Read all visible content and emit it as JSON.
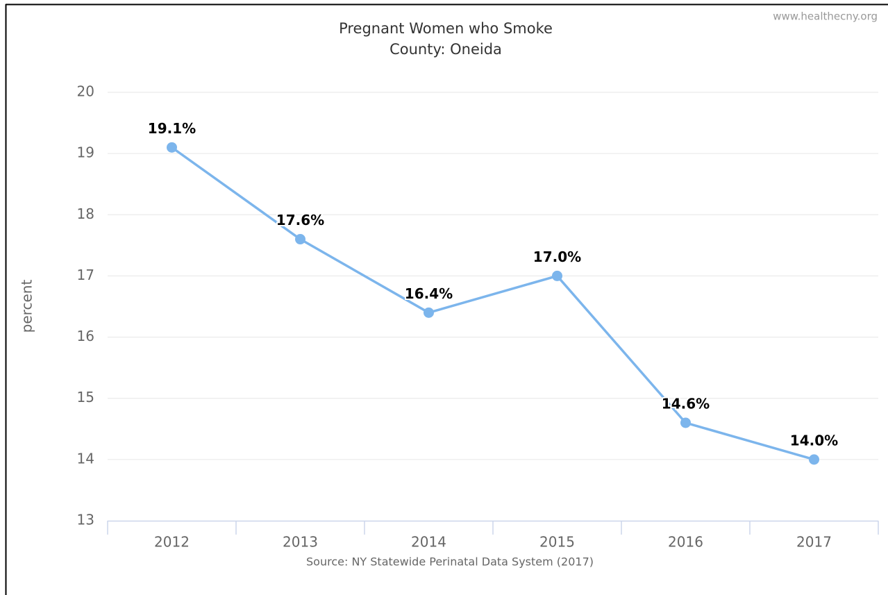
{
  "chart_data": {
    "type": "line",
    "title": "Pregnant Women who Smoke",
    "subtitle": "County: Oneida",
    "credit": "www.healthecny.org",
    "y_label": "percent",
    "source": "Source: NY Statewide Perinatal Data System (2017)",
    "categories": [
      "2012",
      "2013",
      "2014",
      "2015",
      "2016",
      "2017"
    ],
    "values": [
      19.1,
      17.6,
      16.4,
      17.0,
      14.6,
      14.0
    ],
    "value_labels": [
      "19.1%",
      "17.6%",
      "16.4%",
      "17.0%",
      "14.6%",
      "14.0%"
    ],
    "color": "#7cb5ec",
    "ylim": [
      13,
      20
    ],
    "yticks": [
      13,
      14,
      15,
      16,
      17,
      18,
      19,
      20
    ],
    "grid": true
  }
}
